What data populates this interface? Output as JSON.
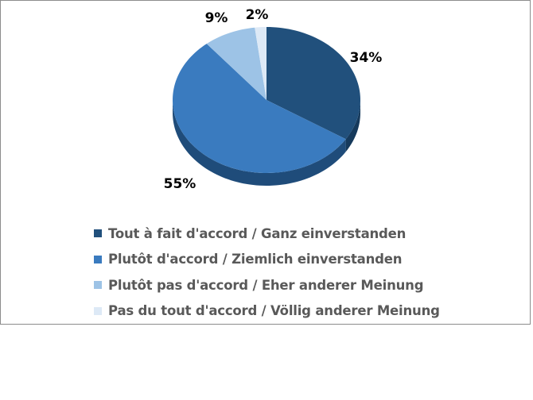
{
  "chart_data": {
    "type": "pie",
    "style": "3d",
    "categories": [
      "Tout à fait d'accord / Ganz einverstanden",
      "Plutôt d'accord / Ziemlich einverstanden",
      "Plutôt pas d'accord / Eher anderer Meinung",
      "Pas du tout d'accord / Völlig anderer Meinung"
    ],
    "values": [
      34,
      55,
      9,
      2
    ],
    "data_labels": [
      "34%",
      "55%",
      "9%",
      "2%"
    ],
    "colors": [
      "#21507c",
      "#3a7bbf",
      "#9dc3e6",
      "#dde9f6"
    ],
    "side_colors": [
      "#163a5c",
      "#1f4c7a",
      "#6f9cc6",
      "#b0c6dd"
    ],
    "legend_position": "bottom",
    "start_angle": "top, clockwise"
  }
}
